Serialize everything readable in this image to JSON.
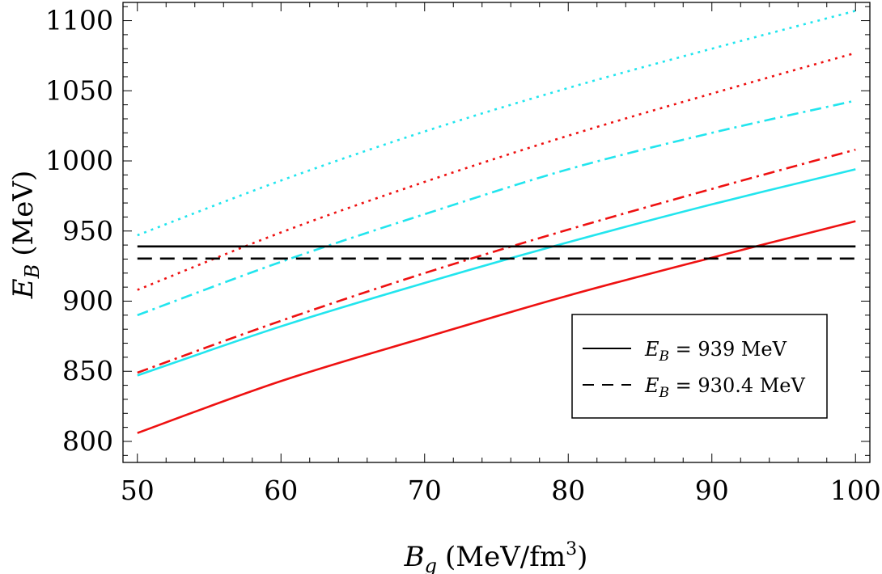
{
  "chart_data": {
    "type": "line",
    "xlabel": {
      "main": "B",
      "sub": "g",
      "unit_pre": "(MeV/fm",
      "sup": "3",
      "unit_post": ")"
    },
    "ylabel": {
      "main": "E",
      "sub": "B",
      "unit": "(MeV)"
    },
    "xlim": [
      49,
      101
    ],
    "ylim": [
      785,
      1113
    ],
    "xticks": [
      50,
      60,
      70,
      80,
      90,
      100
    ],
    "xtick_labels": [
      "50",
      "60",
      "70",
      "80",
      "90",
      "100"
    ],
    "yticks": [
      800,
      850,
      900,
      950,
      1000,
      1050,
      1100
    ],
    "ytick_labels": [
      "800",
      "850",
      "900",
      "950",
      "1000",
      "1050",
      "1100"
    ],
    "grid": false,
    "series": [
      {
        "color": "#ee1111",
        "dash": "solid",
        "x": [
          50,
          60,
          70,
          80,
          90,
          100
        ],
        "y": [
          806,
          843,
          874,
          904,
          931,
          957
        ]
      },
      {
        "color": "#22e5ee",
        "dash": "solid",
        "x": [
          50,
          60,
          70,
          80,
          90,
          100
        ],
        "y": [
          847,
          882,
          913,
          942,
          969,
          994
        ]
      },
      {
        "color": "#ee1111",
        "dash": "dashdot",
        "x": [
          50,
          60,
          70,
          80,
          90,
          100
        ],
        "y": [
          849,
          886,
          920,
          951,
          980,
          1008
        ]
      },
      {
        "color": "#22e5ee",
        "dash": "dashdot",
        "x": [
          50,
          60,
          70,
          80,
          90,
          100
        ],
        "y": [
          890,
          928,
          962,
          994,
          1020,
          1043
        ]
      },
      {
        "color": "#ee1111",
        "dash": "dotted",
        "x": [
          50,
          60,
          70,
          80,
          90,
          100
        ],
        "y": [
          908,
          949,
          985,
          1018,
          1048,
          1077
        ]
      },
      {
        "color": "#22e5ee",
        "dash": "dotted",
        "x": [
          50,
          60,
          70,
          80,
          90,
          100
        ],
        "y": [
          947,
          986,
          1021,
          1052,
          1080,
          1107
        ]
      },
      {
        "color": "#000000",
        "dash": "solid",
        "x": [
          50,
          100
        ],
        "y": [
          939,
          939
        ]
      },
      {
        "color": "#000000",
        "dash": "dashed",
        "x": [
          50,
          100
        ],
        "y": [
          930.4,
          930.4
        ]
      }
    ],
    "legend": {
      "placement": "lower-right",
      "entries": [
        {
          "dash": "solid",
          "symbol": "E",
          "sub": "B",
          "text": " = 939 MeV"
        },
        {
          "dash": "dashed",
          "symbol": "E",
          "sub": "B",
          "text": " = 930.4 MeV"
        }
      ]
    }
  }
}
